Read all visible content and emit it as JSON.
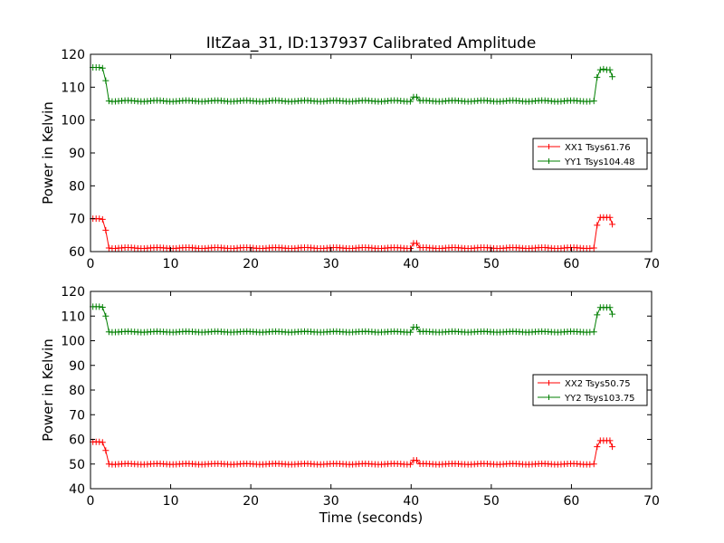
{
  "figure": {
    "title": "IItZaa_31, ID:137937 Calibrated Amplitude"
  },
  "chart_data": [
    {
      "type": "line",
      "title": "IItZaa_31, ID:137937 Calibrated Amplitude",
      "xlabel": "",
      "ylabel": "Power in Kelvin",
      "xlim": [
        0,
        70
      ],
      "ylim": [
        60,
        120
      ],
      "xticks": [
        0,
        10,
        20,
        30,
        40,
        50,
        60,
        70
      ],
      "yticks": [
        60,
        70,
        80,
        90,
        100,
        110,
        120
      ],
      "grid": false,
      "legend": "center-right",
      "x": [
        0.3,
        0.7,
        1.1,
        1.5,
        1.9,
        2.3,
        62.8,
        63.2,
        63.6,
        64.0,
        64.4,
        64.8,
        65.1
      ],
      "series": [
        {
          "name": "XX1 Tsys61.76",
          "color": "#ff0000",
          "base": 61.1,
          "plateau_start": 70.0,
          "plateau_end": 70.4,
          "spike": [
            40.5,
            62.5
          ],
          "values": [
            70.0,
            70.0,
            70.0,
            69.8,
            66.5,
            61.1,
            61.1,
            68.0,
            70.4,
            70.4,
            70.4,
            70.4,
            68.3
          ]
        },
        {
          "name": "YY1 Tsys104.48",
          "color": "#007f00",
          "base": 105.8,
          "plateau_start": 116.0,
          "plateau_end": 115.3,
          "spike": [
            40.5,
            107.0
          ],
          "values": [
            116.0,
            116.0,
            116.0,
            115.8,
            112.0,
            105.8,
            105.8,
            113.0,
            115.3,
            115.5,
            115.3,
            115.3,
            113.2
          ]
        }
      ]
    },
    {
      "type": "line",
      "title": "",
      "xlabel": "Time (seconds)",
      "ylabel": "Power in Kelvin",
      "xlim": [
        0,
        70
      ],
      "ylim": [
        40,
        120
      ],
      "xticks": [
        0,
        10,
        20,
        30,
        40,
        50,
        60,
        70
      ],
      "yticks": [
        40,
        50,
        60,
        70,
        80,
        90,
        100,
        110,
        120
      ],
      "grid": false,
      "legend": "center-right",
      "series": [
        {
          "name": "XX2 Tsys50.75",
          "color": "#ff0000",
          "base": 50.0,
          "plateau_start": 59.0,
          "plateau_end": 59.5,
          "spike": [
            40.5,
            51.5
          ],
          "values": [
            59.0,
            59.0,
            59.0,
            58.8,
            55.5,
            50.0,
            50.0,
            57.0,
            59.5,
            59.5,
            59.5,
            59.5,
            57.0
          ]
        },
        {
          "name": "YY2 Tsys103.75",
          "color": "#007f00",
          "base": 103.6,
          "plateau_start": 113.8,
          "plateau_end": 113.5,
          "spike": [
            40.5,
            105.5
          ],
          "values": [
            113.8,
            113.8,
            113.8,
            113.6,
            110.0,
            103.6,
            103.6,
            110.5,
            113.5,
            113.5,
            113.5,
            113.5,
            110.8
          ]
        }
      ]
    }
  ]
}
